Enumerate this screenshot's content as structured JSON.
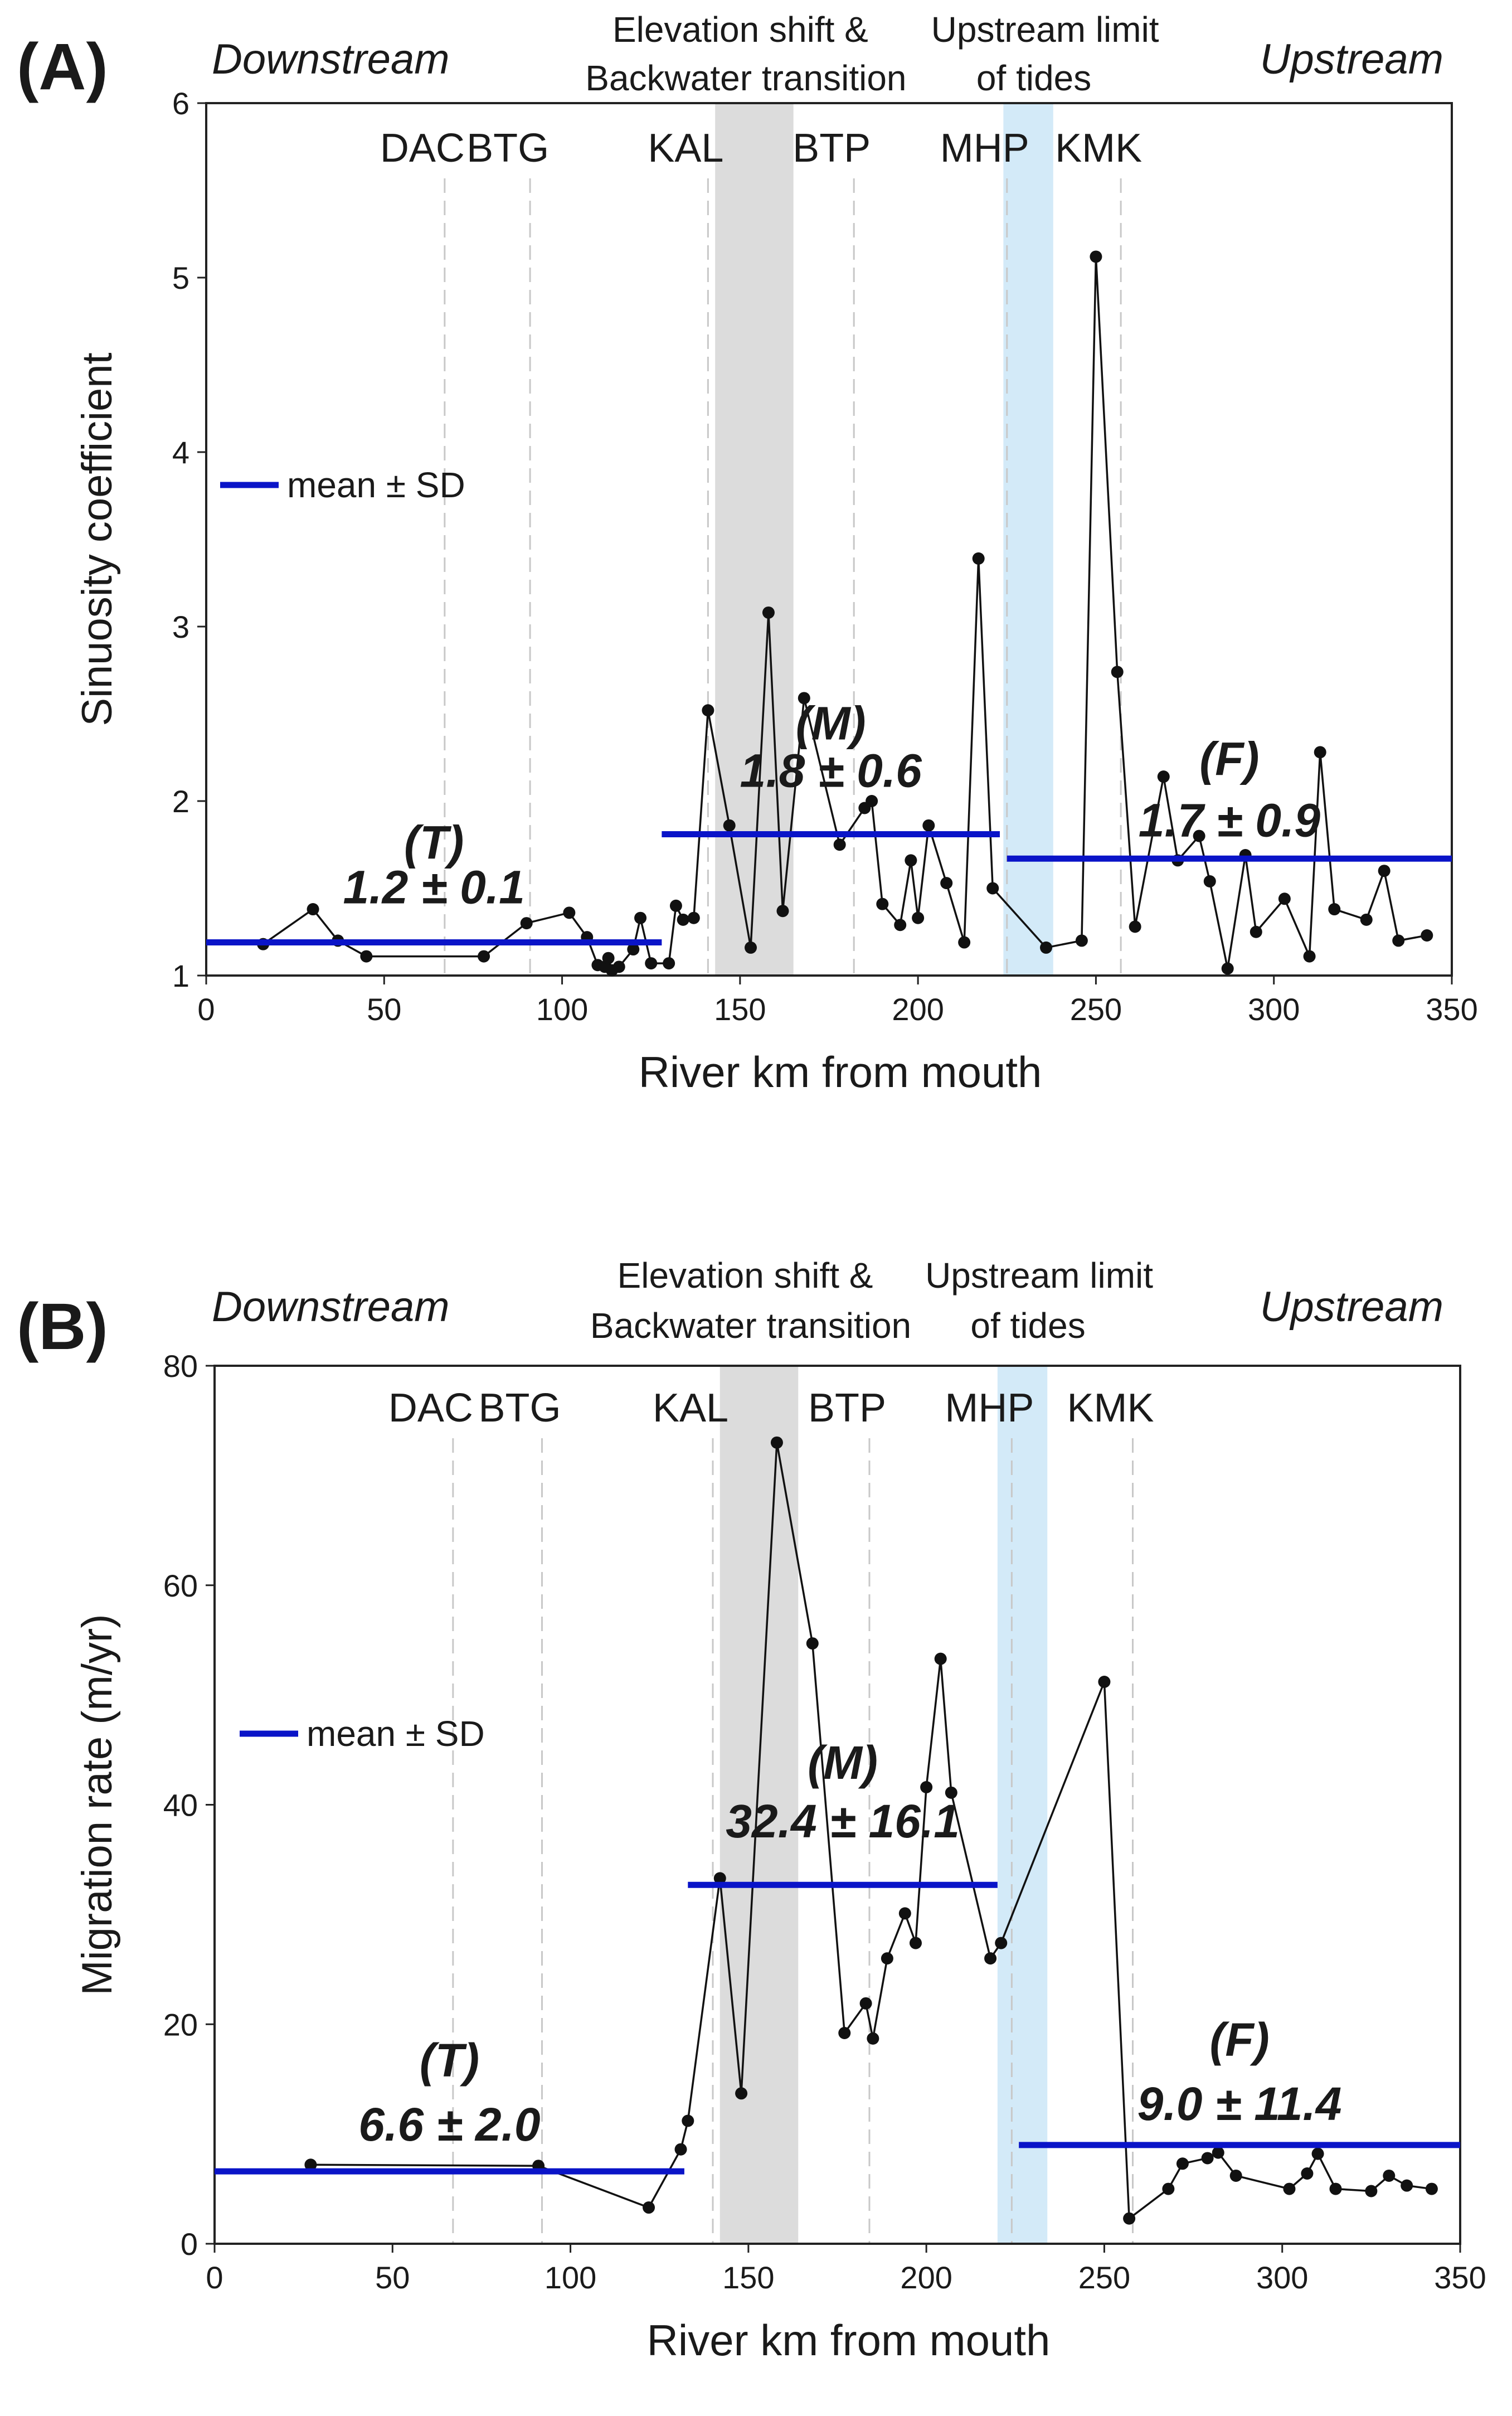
{
  "figure_labels": [
    "(A)",
    "(B)"
  ],
  "chart_data": [
    {
      "type": "line",
      "panel_label": "(A)",
      "xlabel": "River km from mouth",
      "ylabel": "Sinuosity coefficient",
      "xlim": [
        0,
        350
      ],
      "ylim": [
        1,
        6
      ],
      "xticks": [
        0,
        50,
        100,
        150,
        200,
        250,
        300,
        350
      ],
      "yticks": [
        1,
        2,
        3,
        4,
        5,
        6
      ],
      "headers": {
        "downstream": "Downstream",
        "upstream": "Upstream",
        "elevation_line1": "Elevation shift &",
        "elevation_line2": "Backwater transition",
        "tide_line1": "Upstream limit",
        "tide_line2": "of  tides"
      },
      "shaded_bands": [
        {
          "name": "elevation-shift-backwater-transition",
          "x0": 143,
          "x1": 165,
          "color": "#dcdcdc"
        },
        {
          "name": "upstream-limit-of-tides",
          "x0": 224,
          "x1": 238,
          "color": "#d3eaf8"
        }
      ],
      "stations": [
        {
          "label": "DAC",
          "x": 67
        },
        {
          "label": "BTG",
          "x": 91
        },
        {
          "label": "KAL",
          "x": 141
        },
        {
          "label": "BTP",
          "x": 182
        },
        {
          "label": "MHP",
          "x": 225
        },
        {
          "label": "KMK",
          "x": 257
        }
      ],
      "series": [
        {
          "name": "Sinuosity coefficient",
          "color": "#111111",
          "x": [
            16,
            30,
            37,
            45,
            78,
            90,
            102,
            107,
            110,
            112,
            113,
            114,
            116,
            120,
            122,
            125,
            130,
            132,
            134,
            137,
            141,
            147,
            153,
            158,
            162,
            168,
            178,
            185,
            187,
            190,
            195,
            198,
            200,
            203,
            208,
            213,
            217,
            221,
            236,
            246,
            250,
            256,
            261,
            269,
            273,
            279,
            282,
            287,
            292,
            295,
            303,
            310,
            313,
            317,
            326,
            331,
            335,
            343
          ],
          "y": [
            1.18,
            1.38,
            1.2,
            1.11,
            1.11,
            1.3,
            1.36,
            1.22,
            1.06,
            1.05,
            1.1,
            1.03,
            1.05,
            1.15,
            1.33,
            1.07,
            1.07,
            1.4,
            1.32,
            1.33,
            2.52,
            1.86,
            1.16,
            3.08,
            1.37,
            2.59,
            1.75,
            1.96,
            2.0,
            1.41,
            1.29,
            1.66,
            1.33,
            1.86,
            1.53,
            1.19,
            3.39,
            1.5,
            1.16,
            1.2,
            5.12,
            2.74,
            1.28,
            2.14,
            1.66,
            1.8,
            1.54,
            1.04,
            1.69,
            1.25,
            1.44,
            1.11,
            2.28,
            1.38,
            1.32,
            1.6,
            1.2,
            1.23
          ]
        }
      ],
      "segments": [
        {
          "name": "T",
          "label": "(T)",
          "stat": "1.2 ± 0.1",
          "x0": 0,
          "x1": 128,
          "y": 1.19
        },
        {
          "name": "M",
          "label": "(M)",
          "stat": "1.8 ± 0.6",
          "x0": 128,
          "x1": 223,
          "y": 1.81
        },
        {
          "name": "F",
          "label": "(F)",
          "stat": "1.7 ± 0.9",
          "x0": 225,
          "x1": 350,
          "y": 1.67
        }
      ],
      "legend": {
        "label": "mean ± SD",
        "color": "#0a14c8",
        "placement": "left-middle"
      }
    },
    {
      "type": "line",
      "panel_label": "(B)",
      "xlabel": "River km from mouth",
      "ylabel": "Migration rate (m/yr)",
      "xlim": [
        0,
        350
      ],
      "ylim": [
        0,
        80
      ],
      "xticks": [
        0,
        50,
        100,
        150,
        200,
        250,
        300,
        350
      ],
      "yticks": [
        0,
        20,
        40,
        60,
        80
      ],
      "headers": {
        "downstream": "Downstream",
        "upstream": "Upstream",
        "elevation_line1": "Elevation shift &",
        "elevation_line2": "Backwater transition",
        "tide_line1": "Upstream limit",
        "tide_line2": "of  tides"
      },
      "shaded_bands": [
        {
          "name": "elevation-shift-backwater-transition",
          "x0": 142,
          "x1": 164,
          "color": "#dcdcdc"
        },
        {
          "name": "upstream-limit-of-tides",
          "x0": 220,
          "x1": 234,
          "color": "#d3eaf8"
        }
      ],
      "stations": [
        {
          "label": "DAC",
          "x": 67
        },
        {
          "label": "BTG",
          "x": 92
        },
        {
          "label": "KAL",
          "x": 140
        },
        {
          "label": "BTP",
          "x": 184
        },
        {
          "label": "MHP",
          "x": 224
        },
        {
          "label": "KMK",
          "x": 258
        }
      ],
      "series": [
        {
          "name": "Migration rate",
          "color": "#111111",
          "x": [
            27,
            91,
            122,
            131,
            133,
            142,
            148,
            158,
            168,
            177,
            183,
            185,
            189,
            194,
            197,
            200,
            204,
            207,
            218,
            221,
            250,
            257,
            268,
            272,
            279,
            282,
            287,
            302,
            307,
            310,
            315,
            325,
            330,
            335,
            342
          ],
          "y": [
            7.2,
            7.1,
            3.3,
            8.6,
            11.2,
            33.3,
            13.7,
            73.0,
            54.7,
            19.2,
            21.9,
            18.7,
            26.0,
            30.1,
            27.4,
            41.6,
            53.3,
            41.1,
            26.0,
            27.4,
            51.2,
            2.3,
            5.0,
            7.3,
            7.8,
            8.3,
            6.2,
            5.0,
            6.4,
            8.2,
            5.0,
            4.8,
            6.2,
            5.3,
            5.0
          ]
        }
      ],
      "segments": [
        {
          "name": "T",
          "label": "(T)",
          "stat": "6.6 ± 2.0",
          "x0": 0,
          "x1": 132,
          "y": 6.6
        },
        {
          "name": "M",
          "label": "(M)",
          "stat": "32.4 ± 16.1",
          "x0": 133,
          "x1": 220,
          "y": 32.7
        },
        {
          "name": "F",
          "label": "(F)",
          "stat": "9.0 ± 11.4",
          "x0": 226,
          "x1": 350,
          "y": 9.0
        }
      ],
      "legend": {
        "label": "mean ± SD",
        "color": "#0a14c8",
        "placement": "left-middle"
      }
    }
  ]
}
